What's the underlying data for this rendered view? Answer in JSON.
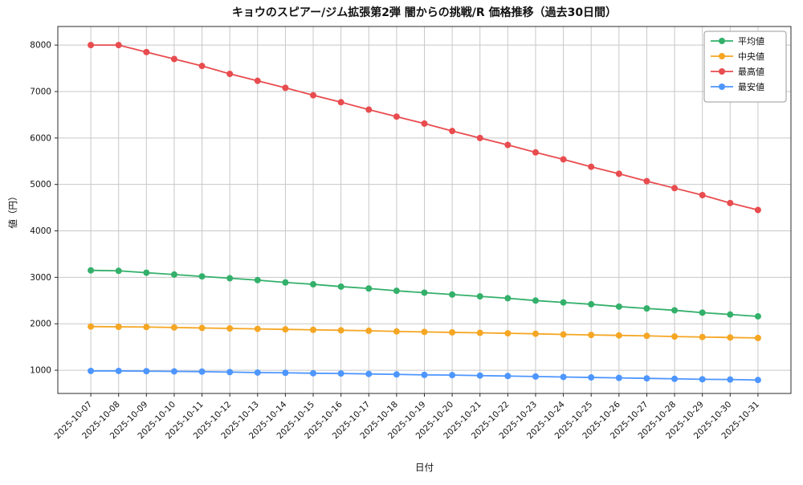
{
  "chart_data": {
    "type": "line",
    "title": "キョウのスピアー/ジム拡張第2弾 闇からの挑戦/R 価格推移（過去30日間）",
    "xlabel": "日付",
    "ylabel": "値（円）",
    "ylim": [
      500,
      8400
    ],
    "yticks": [
      1000,
      2000,
      3000,
      4000,
      5000,
      6000,
      7000,
      8000
    ],
    "grid": true,
    "legend_position": "upper right",
    "categories": [
      "2025-10-07",
      "2025-10-08",
      "2025-10-09",
      "2025-10-10",
      "2025-10-11",
      "2025-10-12",
      "2025-10-13",
      "2025-10-14",
      "2025-10-15",
      "2025-10-16",
      "2025-10-17",
      "2025-10-18",
      "2025-10-19",
      "2025-10-20",
      "2025-10-21",
      "2025-10-22",
      "2025-10-23",
      "2025-10-24",
      "2025-10-25",
      "2025-10-26",
      "2025-10-27",
      "2025-10-28",
      "2025-10-29",
      "2025-10-30",
      "2025-10-31"
    ],
    "series": [
      {
        "name": "平均値",
        "color": "#33b06a",
        "values": [
          3150,
          3140,
          3100,
          3060,
          3020,
          2980,
          2940,
          2890,
          2850,
          2800,
          2760,
          2710,
          2670,
          2630,
          2590,
          2550,
          2500,
          2460,
          2420,
          2370,
          2330,
          2290,
          2240,
          2200,
          2160
        ]
      },
      {
        "name": "中央値",
        "color": "#f5a623",
        "values": [
          1940,
          1935,
          1930,
          1920,
          1910,
          1900,
          1890,
          1880,
          1870,
          1860,
          1850,
          1835,
          1825,
          1815,
          1805,
          1795,
          1785,
          1770,
          1760,
          1750,
          1740,
          1725,
          1715,
          1705,
          1695
        ]
      },
      {
        "name": "最高値",
        "color": "#e84c4f",
        "values": [
          8000,
          8000,
          7850,
          7700,
          7550,
          7380,
          7230,
          7080,
          6920,
          6770,
          6610,
          6460,
          6310,
          6150,
          6000,
          5850,
          5690,
          5540,
          5380,
          5230,
          5070,
          4920,
          4770,
          4600,
          4450
        ]
      },
      {
        "name": "最安値",
        "color": "#4d96ff",
        "values": [
          985,
          985,
          980,
          975,
          970,
          960,
          950,
          945,
          935,
          930,
          920,
          910,
          900,
          895,
          885,
          875,
          865,
          855,
          845,
          835,
          825,
          815,
          805,
          800,
          790
        ]
      }
    ],
    "colors": {
      "grid": "#c8c8c8",
      "axis": "#2b2b2b",
      "legend_border": "#999999",
      "background": "#ffffff"
    }
  }
}
